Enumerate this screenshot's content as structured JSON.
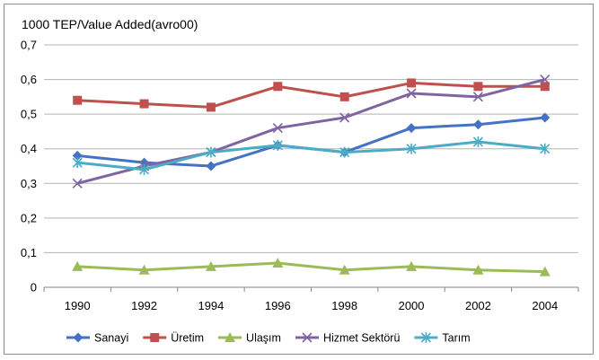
{
  "chart_data": {
    "type": "line",
    "title": "",
    "ylabel": "1000 TEP/Value Added(avro00)",
    "xlabel": "",
    "categories": [
      "1990",
      "1992",
      "1994",
      "1996",
      "1998",
      "2000",
      "2002",
      "2004"
    ],
    "y_ticks": [
      "0",
      "0,1",
      "0,2",
      "0,3",
      "0,4",
      "0,5",
      "0,6",
      "0,7"
    ],
    "ylim": [
      0,
      0.7
    ],
    "grid": "horizontal",
    "legend_position": "bottom",
    "series": [
      {
        "name": "Sanayi",
        "color": "#4472c4",
        "marker": "diamond",
        "values": [
          0.38,
          0.36,
          0.35,
          0.41,
          0.39,
          0.46,
          0.47,
          0.49
        ]
      },
      {
        "name": "Üretim",
        "color": "#c0504d",
        "marker": "square",
        "values": [
          0.54,
          0.53,
          0.52,
          0.58,
          0.55,
          0.59,
          0.58,
          0.58
        ]
      },
      {
        "name": "Ulaşım",
        "color": "#9bbb59",
        "marker": "triangle",
        "values": [
          0.06,
          0.05,
          0.06,
          0.07,
          0.05,
          0.06,
          0.05,
          0.045
        ]
      },
      {
        "name": "Hizmet Sektörü",
        "color": "#8064a2",
        "marker": "x",
        "values": [
          0.3,
          0.35,
          0.39,
          0.46,
          0.49,
          0.56,
          0.55,
          0.6
        ]
      },
      {
        "name": "Tarım",
        "color": "#4bacc6",
        "marker": "star",
        "values": [
          0.36,
          0.34,
          0.39,
          0.41,
          0.39,
          0.4,
          0.42,
          0.4
        ]
      }
    ]
  }
}
